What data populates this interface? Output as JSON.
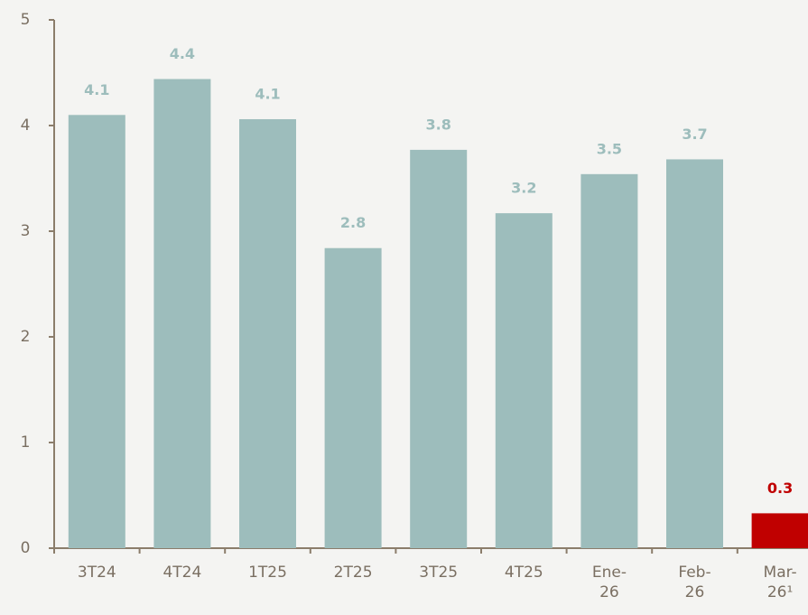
{
  "chart_data": {
    "type": "bar",
    "categories": [
      "3T24",
      "4T24",
      "1T25",
      "2T25",
      "3T25",
      "4T25",
      "Ene-26",
      "Feb-26",
      "Mar-26¹"
    ],
    "values": [
      4.1,
      4.44,
      4.06,
      2.84,
      3.77,
      3.17,
      3.54,
      3.68,
      0.33
    ],
    "value_labels": [
      "4.1",
      "4.4",
      "4.1",
      "2.8",
      "3.8",
      "3.2",
      "3.5",
      "3.7",
      "0.3"
    ],
    "colors": [
      "#9dbdbc",
      "#9dbdbc",
      "#9dbdbc",
      "#9dbdbc",
      "#9dbdbc",
      "#9dbdbc",
      "#9dbdbc",
      "#9dbdbc",
      "#c00000"
    ],
    "ylim": [
      0,
      5
    ],
    "yticks": [
      0,
      1,
      2,
      3,
      4,
      5
    ],
    "grid": false
  }
}
